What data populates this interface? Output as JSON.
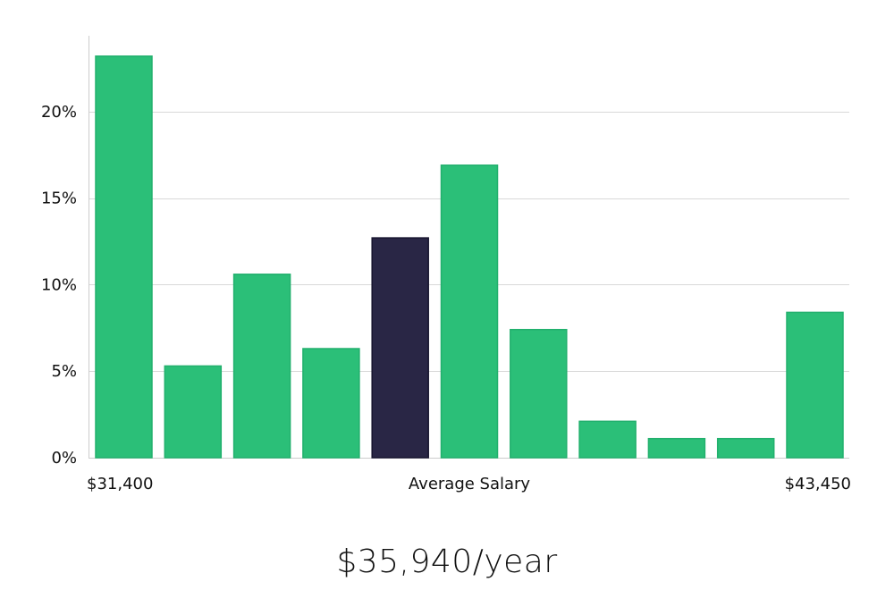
{
  "chart_data": {
    "type": "bar",
    "title": "",
    "xlabel": "Average Salary",
    "ylabel": "",
    "x_range_labels": {
      "min": "$31,400",
      "max": "$43,450"
    },
    "values": [
      23.2,
      5.3,
      10.6,
      6.3,
      12.7,
      16.9,
      7.4,
      2.1,
      1.1,
      1.1,
      8.4
    ],
    "highlight_index": 4,
    "ylim": [
      0,
      24.5
    ],
    "yticks": [
      0,
      5,
      10,
      15,
      20
    ],
    "ytick_labels": [
      "0%",
      "5%",
      "10%",
      "15%",
      "20%"
    ],
    "grid": true,
    "legend": "none"
  },
  "colors": {
    "bar": "#2bbf78",
    "bar_edge": "#22b06d",
    "highlight": "#292645",
    "highlight_edge": "#17152e",
    "grid": "#d9d9d9",
    "axis": "#cccccc"
  },
  "summary": {
    "salary_text": "$35,940/year"
  }
}
